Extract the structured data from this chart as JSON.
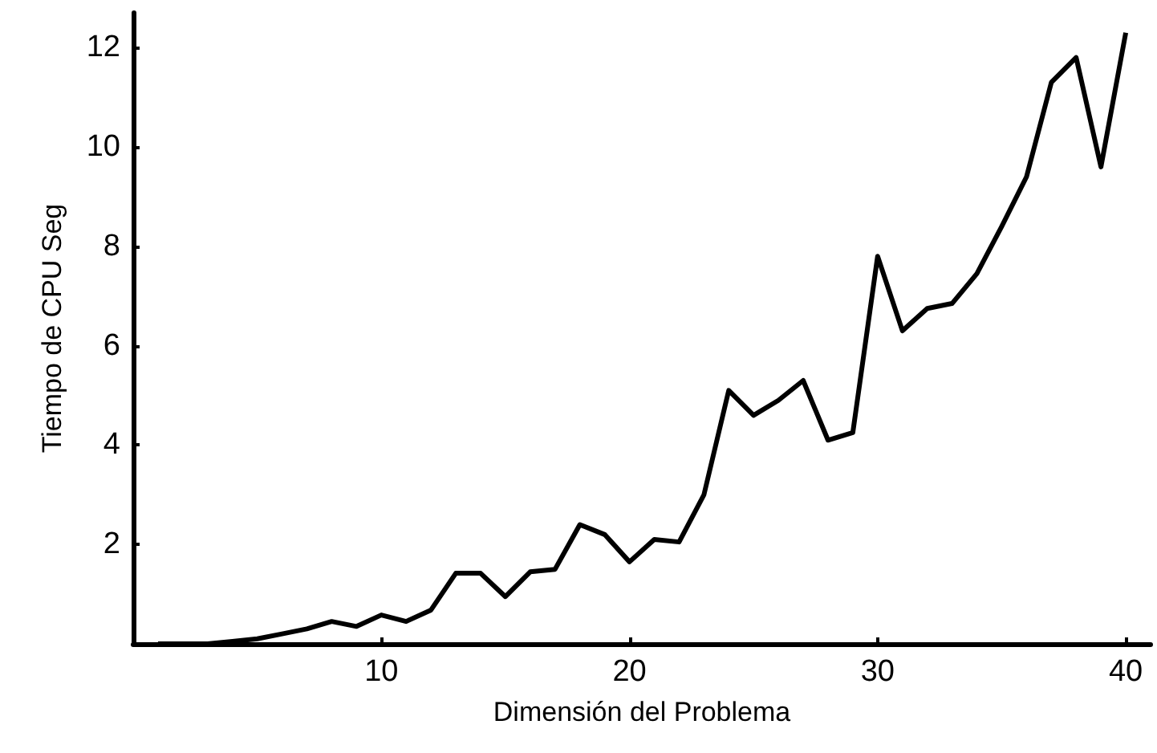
{
  "chart_data": {
    "type": "line",
    "xlabel": "Dimensión del Problema",
    "ylabel": "Tiempo de CPU Seg",
    "x": [
      1,
      2,
      3,
      4,
      5,
      6,
      7,
      8,
      9,
      10,
      11,
      12,
      13,
      14,
      15,
      16,
      17,
      18,
      19,
      20,
      21,
      22,
      23,
      24,
      25,
      26,
      27,
      28,
      29,
      30,
      31,
      32,
      33,
      34,
      35,
      36,
      37,
      38,
      39,
      40
    ],
    "series": [
      {
        "color": "#000000",
        "values": [
          0,
          0,
          0,
          0.05,
          0.1,
          0.2,
          0.3,
          0.45,
          0.35,
          0.58,
          0.45,
          0.68,
          1.42,
          1.42,
          0.95,
          1.45,
          1.5,
          2.4,
          2.2,
          1.65,
          2.1,
          2.05,
          3.0,
          5.1,
          4.6,
          4.9,
          5.3,
          4.1,
          4.25,
          7.8,
          6.3,
          6.75,
          6.85,
          7.45,
          8.4,
          9.4,
          11.3,
          11.8,
          9.6,
          12.3
        ]
      }
    ],
    "xlim": [
      0,
      41
    ],
    "ylim": [
      0,
      12.7
    ],
    "xticks": [
      10,
      20,
      30,
      40
    ],
    "yticks": [
      {
        "value": 0,
        "label": null
      },
      2,
      4,
      6,
      8,
      10,
      12
    ],
    "marker": "none",
    "line_style": "solid"
  }
}
